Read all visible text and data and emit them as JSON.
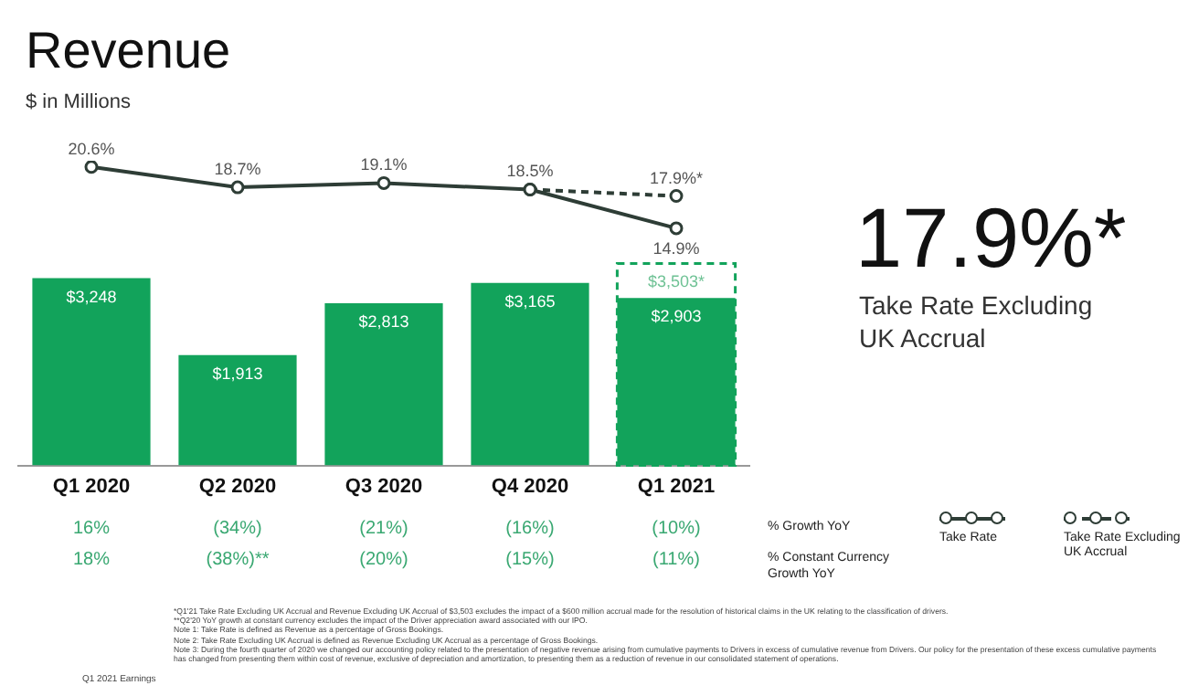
{
  "chart_data": [
    {
      "type": "line",
      "title": "Revenue",
      "subtitle": "$ in Millions",
      "categories": [
        null,
        null,
        null,
        null,
        null
      ],
      "series": [
        {
          "name": "Take Rate",
          "color": "#2e3d36",
          "marker": "circle",
          "line_style": "solid",
          "values": [
            20.6,
            18.7,
            19.1,
            18.5,
            14.9
          ],
          "value_labels": [
            "20.6%",
            "18.7%",
            "19.1%",
            "18.5%",
            "14.9%"
          ]
        },
        {
          "name": "Take Rate Excluding UK Accrual",
          "color": "#2e3d36",
          "marker": "circle",
          "line_style": "dashed",
          "values": [
            null,
            null,
            null,
            18.5,
            17.9
          ],
          "value_labels": [
            null,
            null,
            null,
            null,
            "17.9%*"
          ]
        }
      ],
      "legend": "bottom right",
      "grid": false,
      "tick_labels": false
    },
    {
      "type": "bar",
      "categories": [
        "Q1 2020",
        "Q2 2020",
        "Q3 2020",
        "Q4 2020",
        "Q1 2021"
      ],
      "series": [
        {
          "color": "#12a35b",
          "line_style": "dashed",
          "values": [
            null,
            null,
            null,
            null,
            3503
          ],
          "value_labels": [
            null,
            null,
            null,
            null,
            "$3,503*"
          ]
        },
        {
          "color": "#12a35b",
          "values": [
            3248,
            1913,
            2813,
            3165,
            2903
          ],
          "value_labels": [
            "$3,248",
            "$1,913",
            "$2,813",
            "$3,165",
            "$2,903"
          ]
        }
      ],
      "grid": false,
      "tick_labels": "x",
      "annotations": [
        "% Growth YoY",
        "% Constant Currency Growth YoY",
        "16%",
        "(34%)",
        "(21%)",
        "(16%)",
        "(10%)",
        "18%",
        "(38%)**",
        "(20%)",
        "(15%)",
        "(11%)",
        "*Q1'21 Take Rate Excluding UK Accrual and Revenue Excluding UK Accrual of $3,503 excludes the impact of a $600 million accrual made for the resolution of historical claims in the UK relating to the classification of drivers.",
        "**Q2'20 YoY growth at constant currency excludes the impact of the Driver appreciation award associated with our IPO.",
        "Note 1: Take Rate is defined as Revenue as a percentage of Gross Bookings.",
        "Note 2: Take Rate Excluding UK Accrual is defined as Revenue Excluding UK Accrual as a percentage of Gross Bookings.",
        "Note 3: During the fourth quarter of 2020 we changed our accounting policy related to the presentation of negative revenue arising from cumulative payments to Drivers in excess of cumulative revenue from Drivers. Our policy for the presentation of these excess cumulative payments has changed from presenting them within cost of revenue, exclusive of depreciation and amortization, to presenting them as a reduction of revenue in our consolidated statement of operations.",
        "Q1 2021 Earnings"
      ]
    },
    {
      "type": "other",
      "title": "17.9%*",
      "subtitle": "Take Rate Excluding UK Accrual"
    }
  ]
}
